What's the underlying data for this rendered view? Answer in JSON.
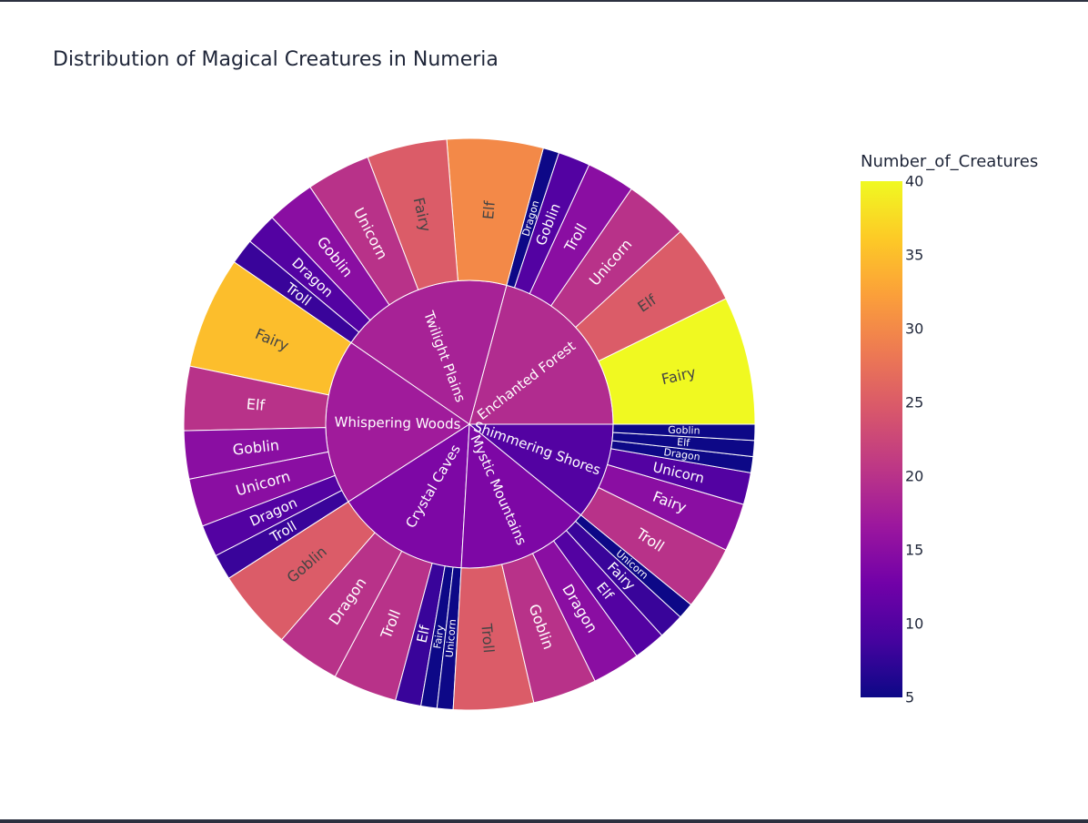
{
  "chart_data": {
    "type": "sunburst",
    "title": "Distribution of Magical Creatures in Numeria",
    "colorbar": {
      "title": "Number_of_Creatures",
      "range": [
        5,
        40
      ],
      "ticks": [
        "40",
        "35",
        "30",
        "25",
        "20",
        "15",
        "10",
        "5"
      ],
      "colorscale": [
        "#0d0887",
        "#46039f",
        "#7201a8",
        "#9c179e",
        "#bd3786",
        "#d8576b",
        "#ed7953",
        "#fb9f3a",
        "#fdca26",
        "#f0f921"
      ]
    },
    "regions": [
      {
        "name": "Enchanted Forest",
        "children": [
          {
            "name": "Fairy",
            "value": 40
          },
          {
            "name": "Elf",
            "value": 25
          },
          {
            "name": "Unicorn",
            "value": 20
          },
          {
            "name": "Troll",
            "value": 15
          },
          {
            "name": "Goblin",
            "value": 10
          },
          {
            "name": "Dragon",
            "value": 5
          }
        ]
      },
      {
        "name": "Twilight Plains",
        "children": [
          {
            "name": "Elf",
            "value": 30
          },
          {
            "name": "Fairy",
            "value": 25
          },
          {
            "name": "Unicorn",
            "value": 20
          },
          {
            "name": "Goblin",
            "value": 15
          },
          {
            "name": "Dragon",
            "value": 10
          },
          {
            "name": "Troll",
            "value": 8
          }
        ]
      },
      {
        "name": "Whispering Woods",
        "children": [
          {
            "name": "Fairy",
            "value": 35
          },
          {
            "name": "Elf",
            "value": 20
          },
          {
            "name": "Goblin",
            "value": 15
          },
          {
            "name": "Unicorn",
            "value": 15
          },
          {
            "name": "Dragon",
            "value": 10
          },
          {
            "name": "Troll",
            "value": 8
          }
        ]
      },
      {
        "name": "Crystal Caves",
        "children": [
          {
            "name": "Goblin",
            "value": 25
          },
          {
            "name": "Dragon",
            "value": 20
          },
          {
            "name": "Troll",
            "value": 20
          },
          {
            "name": "Elf",
            "value": 8
          },
          {
            "name": "Fairy",
            "value": 5
          },
          {
            "name": "Unicorn",
            "value": 5
          }
        ]
      },
      {
        "name": "Mystic Mountains",
        "children": [
          {
            "name": "Troll",
            "value": 25
          },
          {
            "name": "Goblin",
            "value": 20
          },
          {
            "name": "Dragon",
            "value": 15
          },
          {
            "name": "Elf",
            "value": 10
          },
          {
            "name": "Fairy",
            "value": 8
          },
          {
            "name": "Unicorn",
            "value": 5
          }
        ]
      },
      {
        "name": "Shimmering Shores",
        "children": [
          {
            "name": "Troll",
            "value": 20
          },
          {
            "name": "Fairy",
            "value": 15
          },
          {
            "name": "Unicorn",
            "value": 10
          },
          {
            "name": "Dragon",
            "value": 5
          },
          {
            "name": "Elf",
            "value": 5
          },
          {
            "name": "Goblin",
            "value": 5
          }
        ]
      }
    ]
  }
}
